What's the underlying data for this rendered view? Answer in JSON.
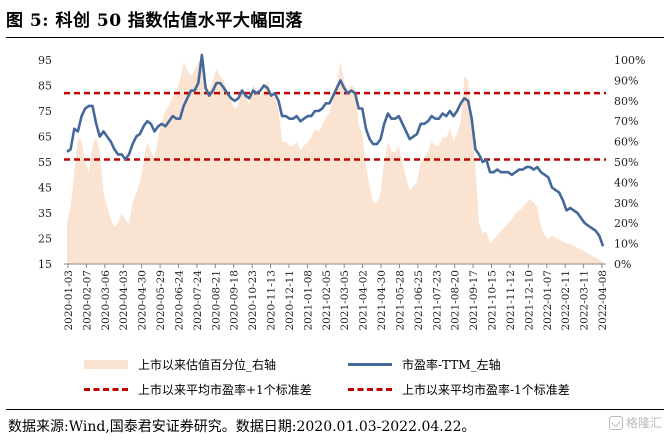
{
  "title": "图 5:  科创 50 指数估值水平大幅回落",
  "source_text": "数据来源:Wind,国泰君安证券研究。数据日期:2020.01.03-2022.04.22。",
  "watermark_text": "格隆汇",
  "legend": {
    "area": "上市以来估值百分位_右轴",
    "line": "市盈率-TTM_左轴",
    "upper": "上市以来平均市盈率+1个标准差",
    "lower": "上市以来平均市盈率-1个标准差"
  },
  "colors": {
    "area": "#fbe3d2",
    "line": "#44689a",
    "bands": "#c00000"
  },
  "chart_data": {
    "type": "line",
    "x_labels": [
      "2020-01-03",
      "2020-02-07",
      "2020-03-06",
      "2020-04-03",
      "2020-04-30",
      "2020-05-29",
      "2020-06-24",
      "2020-07-24",
      "2020-08-21",
      "2020-09-18",
      "2020-10-23",
      "2020-11-13",
      "2020-12-11",
      "2021-01-08",
      "2021-02-05",
      "2021-03-05",
      "2021-04-02",
      "2021-04-30",
      "2021-05-28",
      "2021-06-25",
      "2021-07-23",
      "2021-08-20",
      "2021-09-17",
      "2021-10-15",
      "2021-11-12",
      "2021-12-10",
      "2022-01-07",
      "2022-02-11",
      "2022-03-11",
      "2022-04-08"
    ],
    "y_left": {
      "min": 15,
      "max": 95,
      "ticks": [
        15,
        25,
        35,
        45,
        55,
        65,
        75,
        85,
        95
      ]
    },
    "y_right": {
      "min": 0,
      "max": 100,
      "ticks": [
        "0%",
        "10%",
        "20%",
        "30%",
        "40%",
        "50%",
        "60%",
        "70%",
        "80%",
        "90%",
        "100%"
      ]
    },
    "series": [
      {
        "name": "市盈率-TTM_左轴",
        "axis": "left",
        "values": [
          59,
          60,
          68,
          67,
          73,
          76,
          77,
          77,
          70,
          65,
          67,
          65,
          63,
          60,
          58,
          58,
          56,
          58,
          62,
          65,
          66,
          69,
          71,
          70,
          67,
          69,
          70,
          69,
          71,
          73,
          72,
          72,
          77,
          80,
          83,
          83,
          86,
          97,
          84,
          81,
          83,
          86,
          86,
          84,
          82,
          80,
          79,
          80,
          83,
          81,
          80,
          83,
          82,
          83,
          85,
          84,
          81,
          82,
          79,
          73,
          73,
          72,
          72,
          73,
          71,
          72,
          73,
          73,
          75,
          75,
          76,
          78,
          78,
          81,
          84,
          87,
          84,
          82,
          83,
          82,
          76,
          76,
          68,
          64,
          62,
          62,
          64,
          70,
          74,
          72,
          72,
          73,
          70,
          67,
          64,
          65,
          66,
          70,
          70,
          71,
          73,
          72,
          72,
          74,
          73,
          75,
          73,
          75,
          78,
          80,
          79,
          72,
          60,
          58,
          55,
          56,
          51,
          51,
          52,
          51,
          51,
          51,
          50,
          51,
          52,
          52,
          53,
          53,
          52,
          53,
          51,
          50,
          49,
          45,
          44,
          43,
          40,
          36,
          37,
          36,
          35,
          33,
          31,
          30,
          29,
          28,
          26,
          22
        ]
      },
      {
        "name": "上市以来估值百分位_右轴",
        "axis": "right",
        "values": [
          20,
          28,
          45,
          62,
          60,
          50,
          45,
          58,
          62,
          55,
          35,
          28,
          22,
          18,
          20,
          25,
          22,
          20,
          30,
          35,
          40,
          50,
          60,
          55,
          52,
          62,
          70,
          75,
          78,
          82,
          85,
          90,
          99,
          95,
          92,
          95,
          99,
          99,
          88,
          85,
          90,
          96,
          92,
          90,
          85,
          80,
          76,
          78,
          85,
          82,
          78,
          88,
          85,
          82,
          86,
          90,
          82,
          82,
          76,
          60,
          60,
          58,
          58,
          60,
          56,
          58,
          60,
          62,
          66,
          65,
          68,
          72,
          74,
          82,
          88,
          99,
          90,
          85,
          88,
          86,
          68,
          64,
          48,
          38,
          30,
          30,
          35,
          50,
          60,
          55,
          55,
          58,
          50,
          42,
          36,
          38,
          40,
          50,
          52,
          55,
          60,
          58,
          58,
          62,
          62,
          66,
          60,
          64,
          70,
          92,
          90,
          70,
          48,
          20,
          15,
          16,
          10,
          12,
          14,
          16,
          18,
          20,
          22,
          25,
          26,
          28,
          30,
          32,
          30,
          28,
          18,
          14,
          12,
          14,
          13,
          12,
          11,
          10,
          10,
          9,
          8,
          7,
          6,
          5,
          4,
          3,
          2,
          1
        ]
      }
    ],
    "bands": [
      {
        "name": "上市以来平均市盈率+1个标准差",
        "axis": "left",
        "value": 82
      },
      {
        "name": "上市以来平均市盈率-1个标准差",
        "axis": "left",
        "value": 56
      }
    ],
    "grid": false,
    "legend_position": "bottom"
  }
}
